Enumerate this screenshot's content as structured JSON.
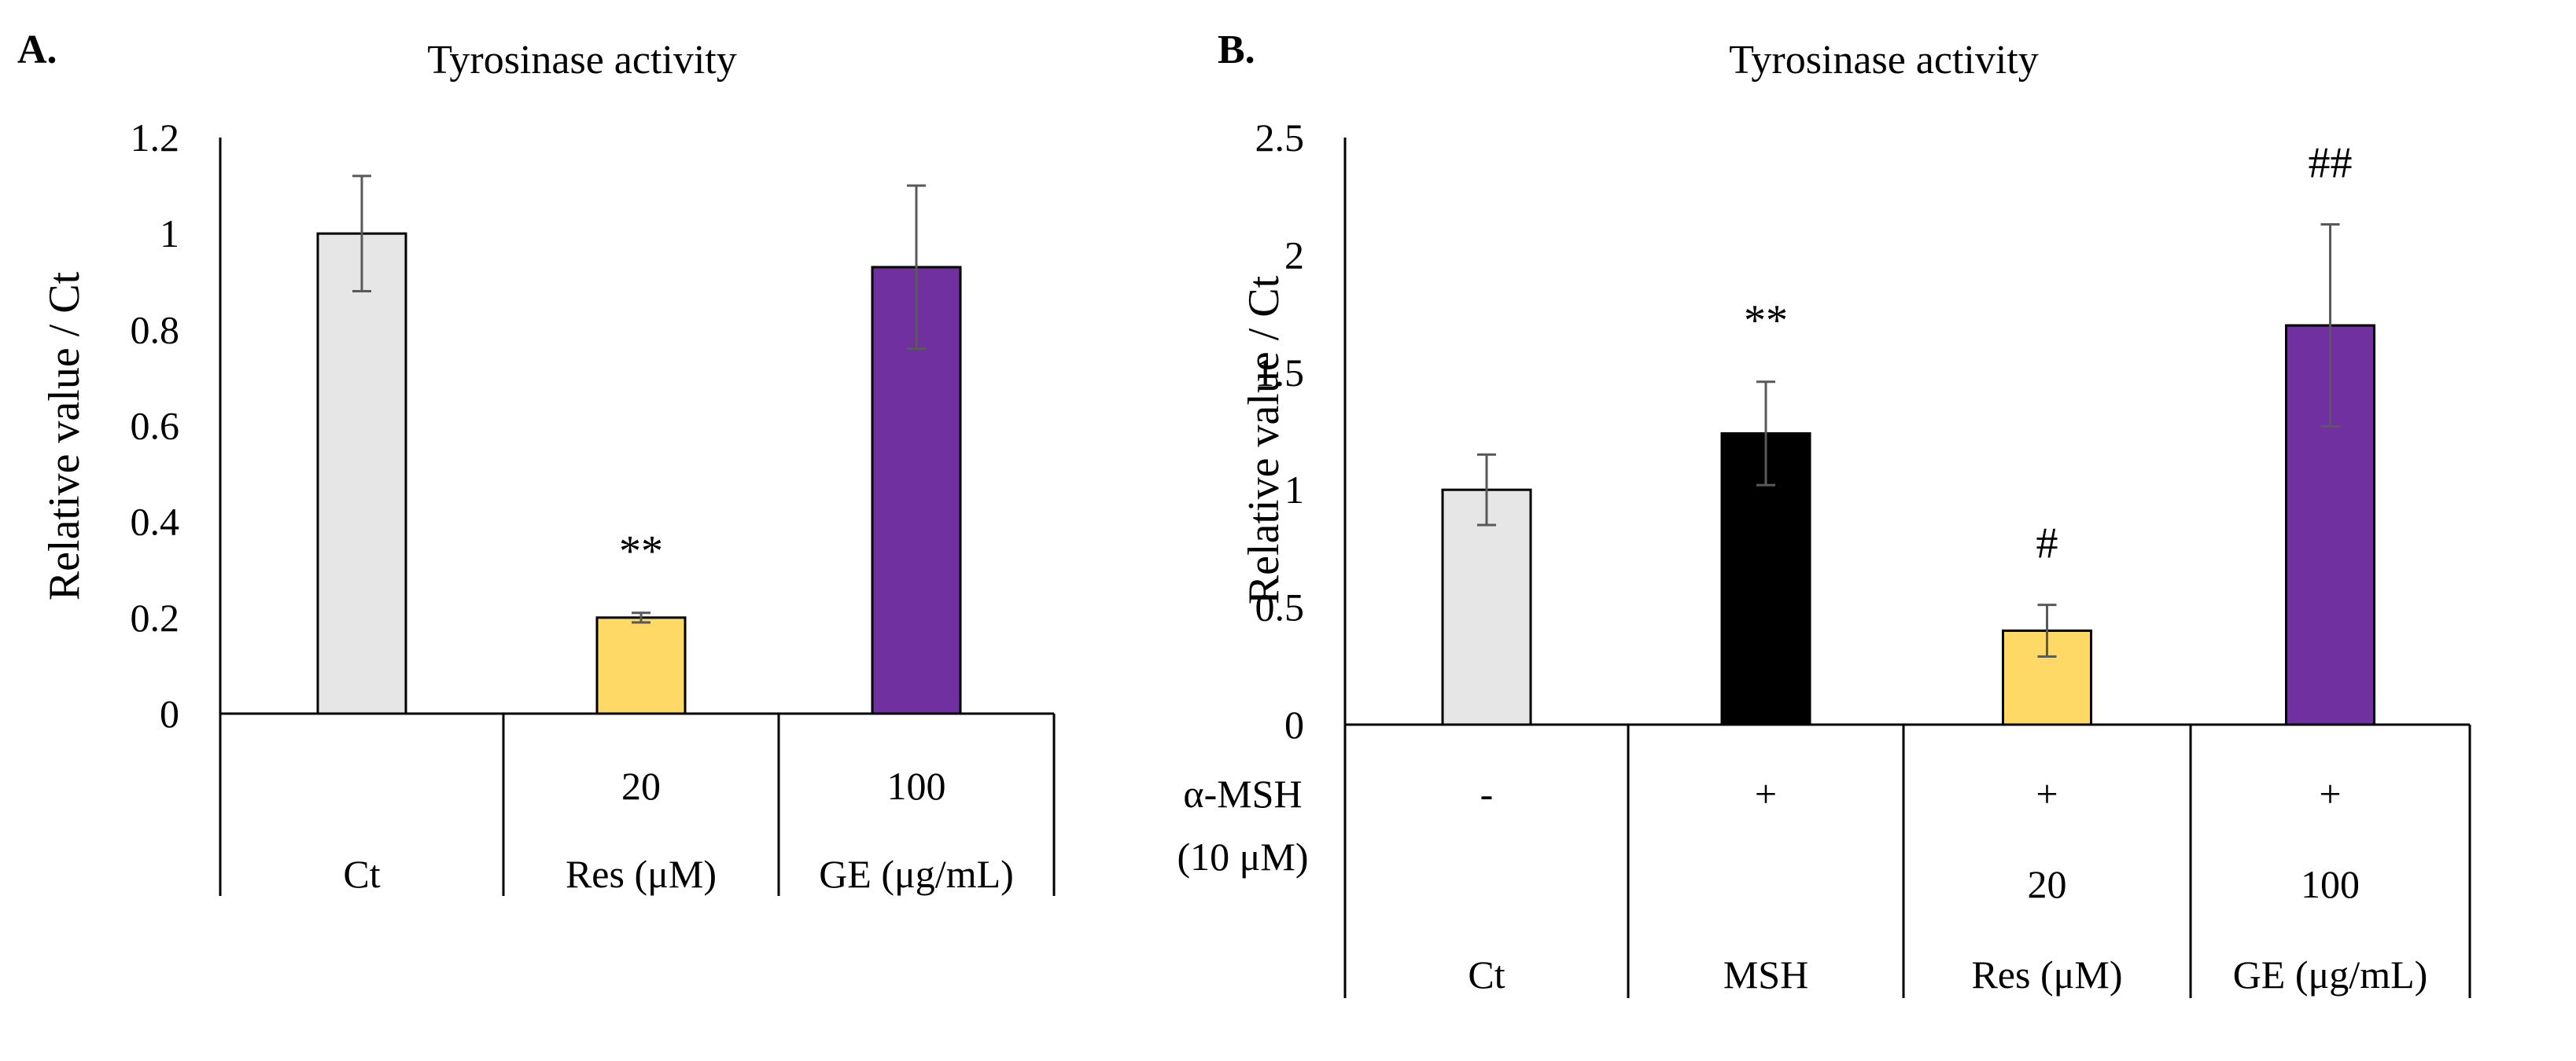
{
  "chart_data": [
    {
      "type": "bar",
      "panel_label": "A.",
      "title": "Tyrosinase activity",
      "ylabel": "Relative value / Ct",
      "ylim": [
        0,
        1.2
      ],
      "yticks": [
        "0",
        "0.2",
        "0.4",
        "0.6",
        "0.8",
        "1",
        "1.2"
      ],
      "categories": [
        "Ct",
        "Res",
        "GE"
      ],
      "values": [
        1.0,
        0.2,
        0.93
      ],
      "errors": [
        0.12,
        0.01,
        0.17
      ],
      "colors": [
        "#e6e6e6",
        "#ffd966",
        "#7030a0"
      ],
      "significance": [
        "",
        "**",
        ""
      ],
      "category_rows": [
        [
          "",
          "20",
          "100"
        ],
        [
          "Ct",
          "Res (μM)",
          "GE (μg/mL)"
        ]
      ],
      "row_labels": []
    },
    {
      "type": "bar",
      "panel_label": "B.",
      "title": "Tyrosinase activity",
      "ylabel": "Relative value / Ct",
      "ylim": [
        0,
        2.5
      ],
      "yticks": [
        "0",
        "0.5",
        "1",
        "1.5",
        "2",
        "2.5"
      ],
      "categories": [
        "Ct",
        "MSH",
        "Res",
        "GE"
      ],
      "values": [
        1.0,
        1.24,
        0.4,
        1.7
      ],
      "errors": [
        0.15,
        0.22,
        0.11,
        0.43
      ],
      "colors": [
        "#e6e6e6",
        "#000000",
        "#ffd966",
        "#7030a0"
      ],
      "significance": [
        "",
        "**",
        "#",
        "##"
      ],
      "category_rows": [
        [
          "-",
          "+",
          "+",
          "+"
        ],
        [
          "",
          "",
          "20",
          "100"
        ],
        [
          "Ct",
          "MSH",
          "Res (μM)",
          "GE (μg/mL)"
        ]
      ],
      "row_labels": [
        "α-MSH",
        "(10 μM)"
      ]
    }
  ]
}
